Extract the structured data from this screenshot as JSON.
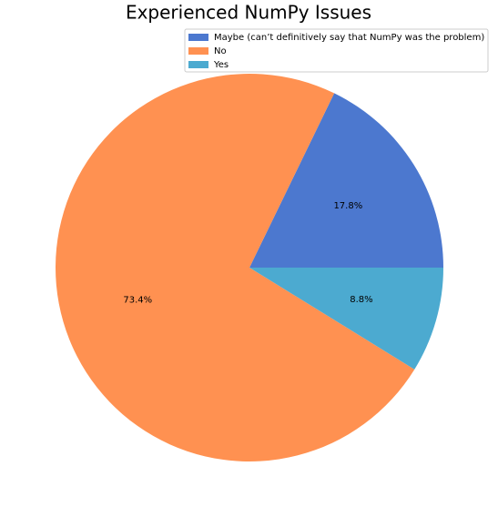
{
  "chart_data": {
    "type": "pie",
    "title": "Experienced NumPy Issues",
    "categories": [
      "Maybe (can’t definitively say that NumPy was the problem)",
      "No",
      "Yes"
    ],
    "values": [
      17.8,
      73.4,
      8.8
    ],
    "value_labels": [
      "17.8%",
      "73.4%",
      "8.8%"
    ],
    "colors": [
      "#4c78cf",
      "#ff9151",
      "#4caad0"
    ],
    "legend": "upper right"
  }
}
